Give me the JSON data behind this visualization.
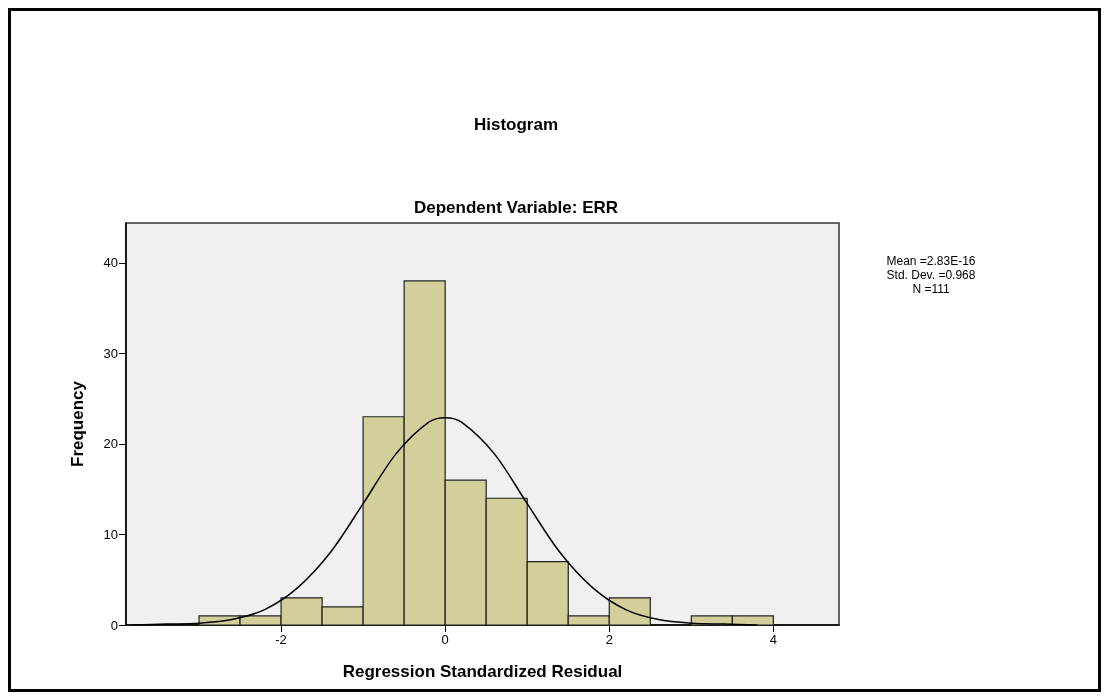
{
  "chart_data": {
    "type": "histogram",
    "title": "Histogram",
    "subtitle": "Dependent Variable: ERR",
    "xlabel": "Regression Standardized Residual",
    "ylabel": "Frequency",
    "bins": [
      -3,
      -2.5,
      -2,
      -1.5,
      -1,
      -0.5,
      0,
      0.5,
      1,
      1.5,
      2,
      2.5,
      3,
      3.5,
      4
    ],
    "values": [
      1,
      1,
      3,
      2,
      23,
      38,
      16,
      14,
      7,
      1,
      3,
      0,
      1,
      1
    ],
    "color": "#d3cf9a",
    "series": [
      {
        "type": "line",
        "color": "#000000",
        "x": [
          -3.8,
          -3.4,
          -3,
          -2.6,
          -2.2,
          -1.8,
          -1.4,
          -1,
          -0.6,
          -0.2,
          0,
          0.2,
          0.6,
          1,
          1.4,
          1.8,
          2.2,
          2.6,
          3,
          3.4,
          3.8
        ],
        "values": [
          0,
          0.1,
          0.2,
          0.6,
          1.7,
          4.1,
          8,
          13.4,
          18.9,
          22.4,
          22.9,
          22.4,
          18.9,
          13.4,
          8,
          4.1,
          1.7,
          0.6,
          0.2,
          0.1,
          0
        ]
      }
    ],
    "xlim": [
      -3.89,
      4.8
    ],
    "xticks": [
      -2,
      0,
      2,
      4
    ],
    "ylim": [
      0,
      44.4
    ],
    "yticks": [
      0,
      10,
      20,
      30,
      40
    ],
    "grid": false,
    "marker": "none",
    "line_style": "solid",
    "annotations": [
      "Mean =2.83E-16",
      "Std. Dev. =0.968",
      "N =111"
    ]
  }
}
